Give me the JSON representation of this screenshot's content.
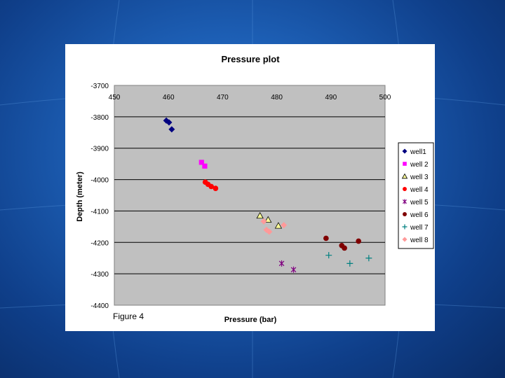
{
  "caption": "Figure 4",
  "chart_data": {
    "type": "scatter",
    "title": "Pressure plot",
    "xlabel": "Pressure (bar)",
    "ylabel": "Depth (meter)",
    "xlim": [
      450,
      500
    ],
    "ylim": [
      -4400,
      -3700
    ],
    "x_ticks": [
      450,
      460,
      470,
      480,
      490,
      500
    ],
    "y_ticks": [
      -3700,
      -3800,
      -3900,
      -4000,
      -4100,
      -4200,
      -4300,
      -4400
    ],
    "x_axis_position": "top",
    "grid": "horizontal-major",
    "plot_background": "#c0c0c0",
    "legend_position": "right",
    "series": [
      {
        "name": "well1",
        "marker": "diamond",
        "color": "#000080",
        "points": [
          [
            459.6,
            -3812
          ],
          [
            460.1,
            -3818
          ],
          [
            460.6,
            -3840
          ]
        ]
      },
      {
        "name": "well 2",
        "marker": "square",
        "color": "#ff00ff",
        "points": [
          [
            466.1,
            -3945
          ],
          [
            466.7,
            -3957
          ]
        ]
      },
      {
        "name": "well 3",
        "marker": "triangle",
        "color": "#ffff99",
        "points": [
          [
            476.9,
            -4115
          ],
          [
            478.4,
            -4128
          ],
          [
            480.3,
            -4147
          ]
        ]
      },
      {
        "name": "well 4",
        "marker": "circle",
        "color": "#ff0000",
        "points": [
          [
            466.8,
            -4008
          ],
          [
            467.3,
            -4015
          ],
          [
            467.9,
            -4022
          ],
          [
            468.7,
            -4028
          ]
        ]
      },
      {
        "name": "well 5",
        "marker": "asterisk",
        "color": "#800080",
        "points": [
          [
            480.9,
            -4267
          ],
          [
            483.1,
            -4287
          ]
        ]
      },
      {
        "name": "well 6",
        "marker": "circle",
        "color": "#800000",
        "points": [
          [
            489.1,
            -4187
          ],
          [
            492.0,
            -4210
          ],
          [
            492.5,
            -4218
          ],
          [
            495.1,
            -4196
          ]
        ]
      },
      {
        "name": "well 7",
        "marker": "plus",
        "color": "#008080",
        "points": [
          [
            489.6,
            -4241
          ],
          [
            493.5,
            -4267
          ],
          [
            497.0,
            -4250
          ]
        ]
      },
      {
        "name": "well 8",
        "marker": "diamond",
        "color": "#ff9999",
        "points": [
          [
            477.6,
            -4133
          ],
          [
            478.1,
            -4160
          ],
          [
            478.6,
            -4166
          ],
          [
            481.3,
            -4145
          ]
        ]
      }
    ]
  }
}
